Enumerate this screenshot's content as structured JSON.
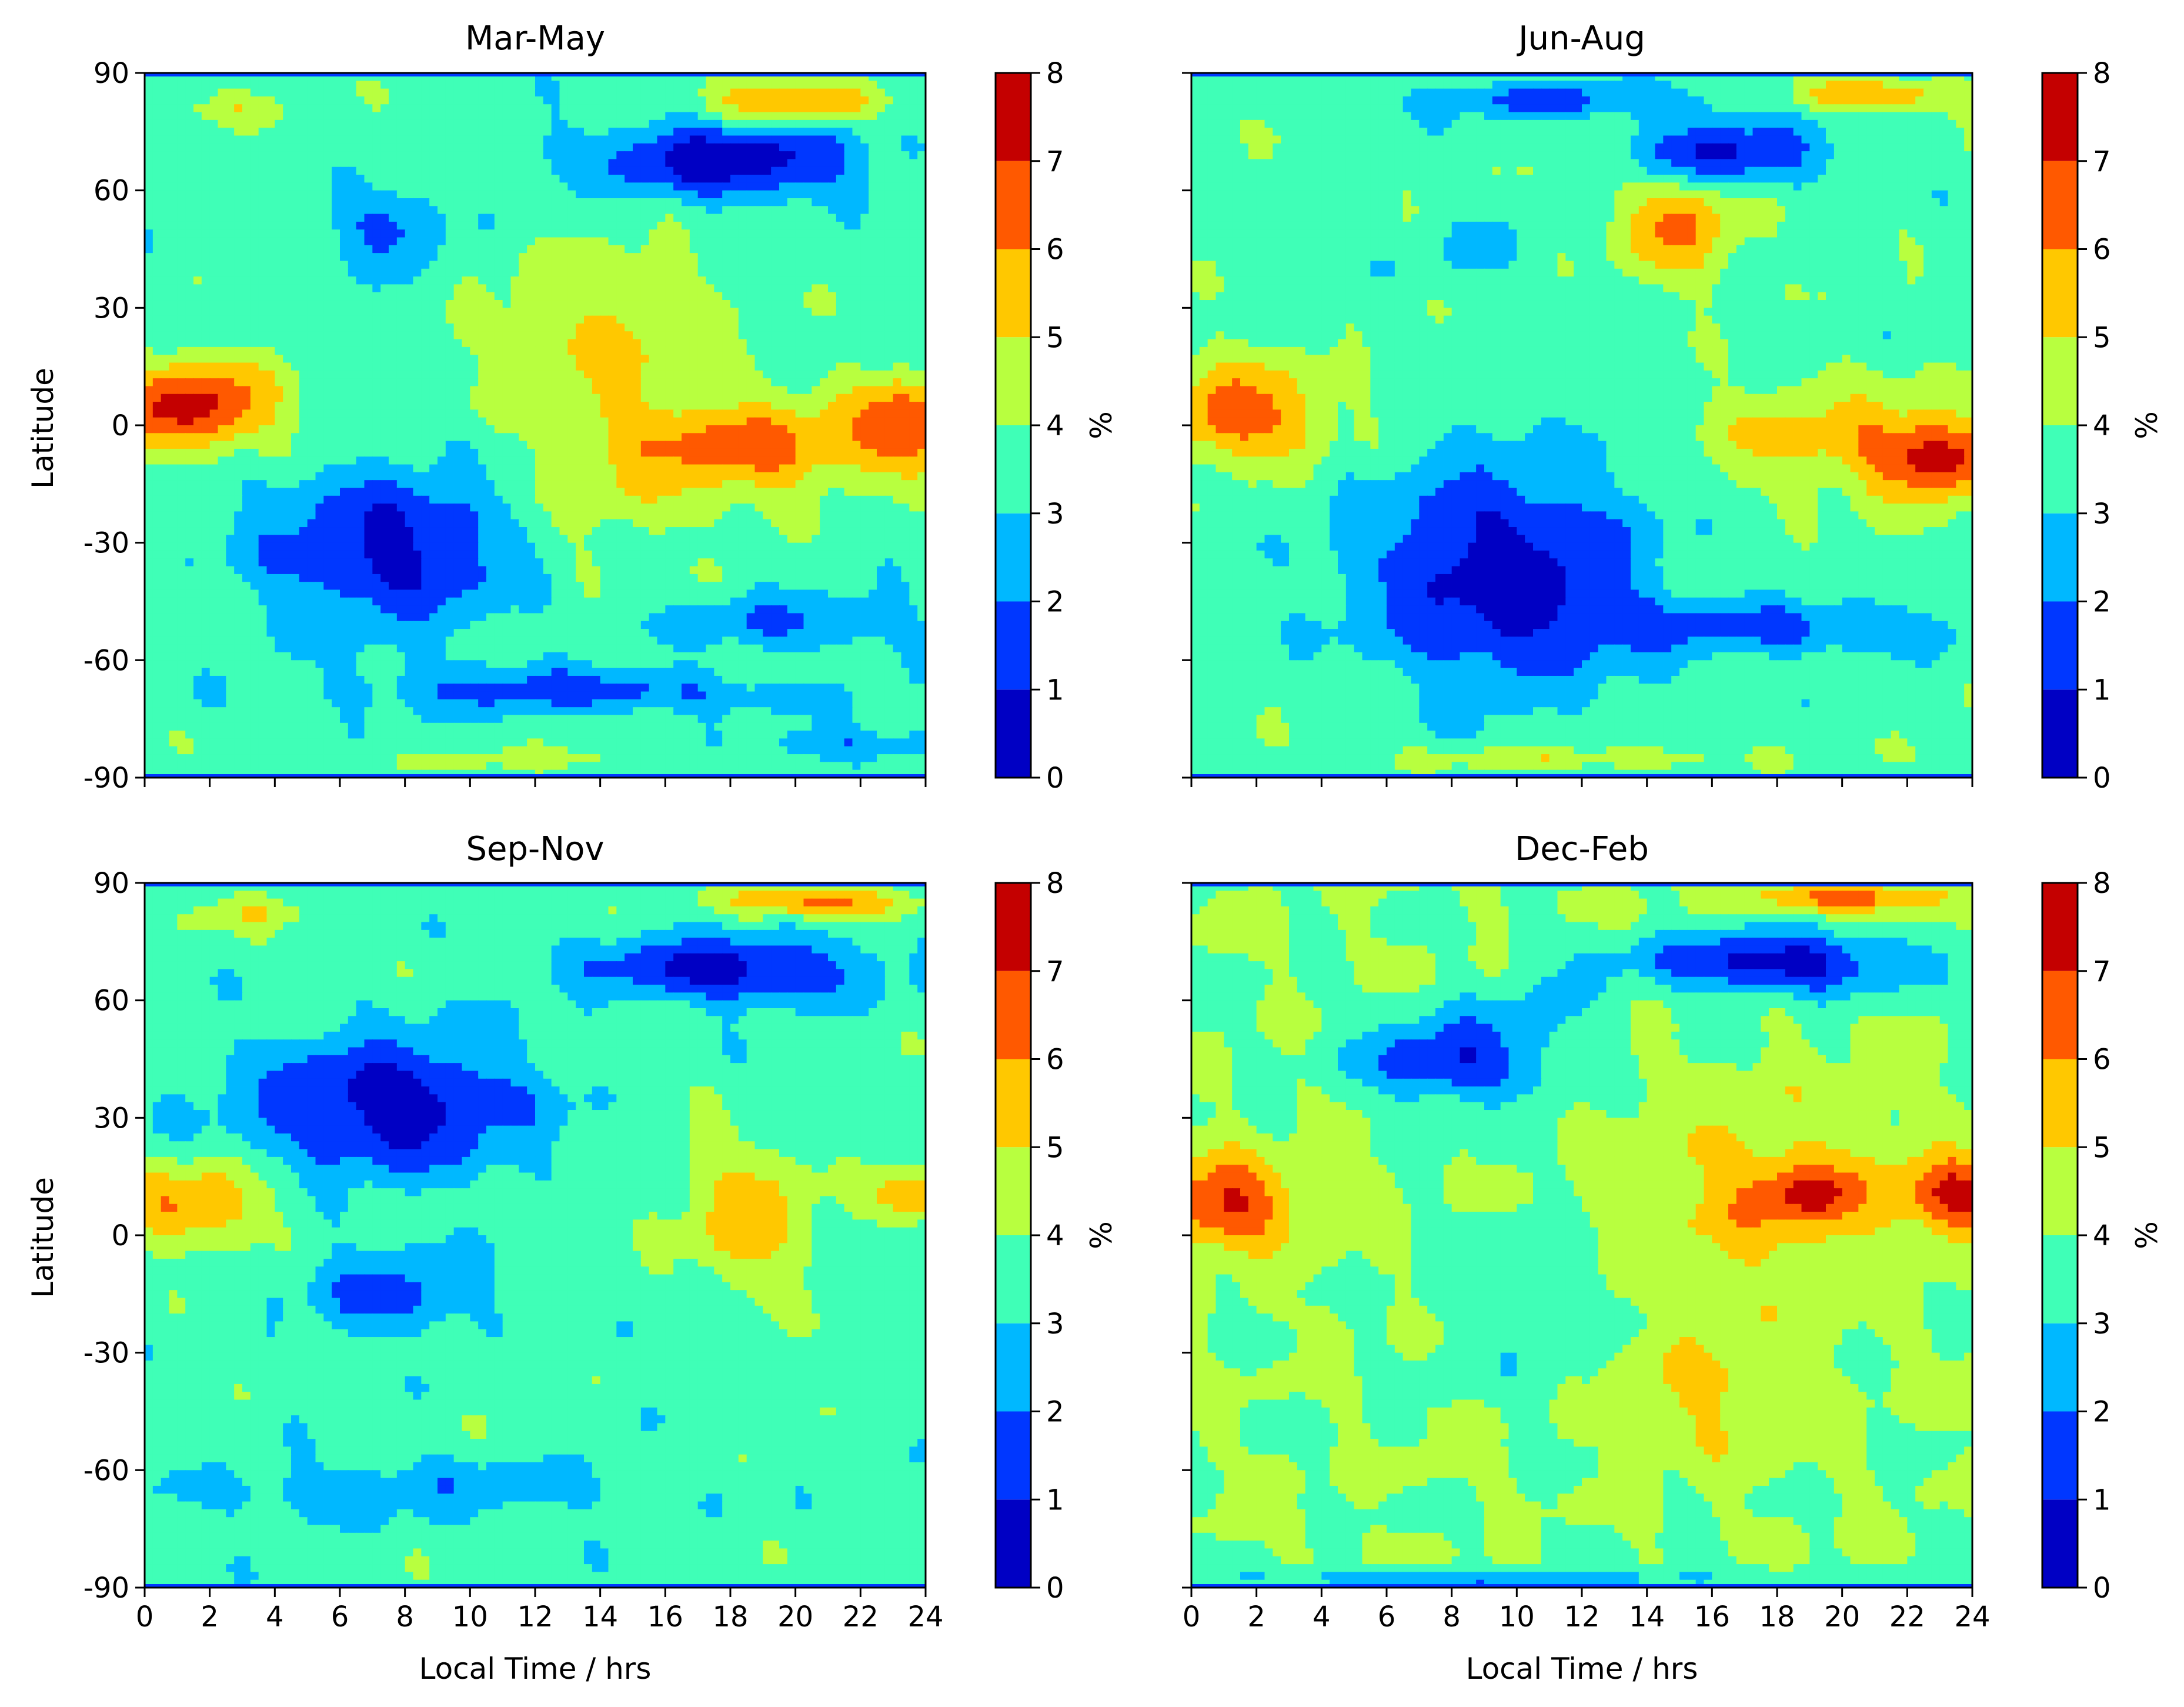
{
  "figure": {
    "colormap": "jet",
    "level_colors": [
      "#0000c4",
      "#0037ff",
      "#00b8ff",
      "#3fffb7",
      "#b8ff3f",
      "#ffc800",
      "#ff5900",
      "#c40000"
    ]
  },
  "chart_data": [
    {
      "type": "heatmap",
      "title": "Mar-May",
      "xlabel": "",
      "ylabel": "Latitude",
      "xlim": [
        0,
        24
      ],
      "ylim": [
        -90,
        90
      ],
      "xticks": [
        0,
        2,
        4,
        6,
        8,
        10,
        12,
        14,
        16,
        18,
        20,
        22,
        24
      ],
      "xtick_labels_shown": false,
      "yticks": [
        90,
        60,
        30,
        0,
        -30,
        -60,
        -90
      ],
      "ytick_labels": [
        "90",
        "60",
        "30",
        "0",
        "-30",
        "-60",
        "-90"
      ],
      "colorbar": {
        "label": "%",
        "levels": [
          0,
          1,
          2,
          3,
          4,
          5,
          6,
          7,
          8
        ],
        "tick_labels": [
          "0",
          "1",
          "2",
          "3",
          "4",
          "5",
          "6",
          "7",
          "8"
        ]
      },
      "base_level": 3.5,
      "features": [
        {
          "lt": 20,
          "lat": 82,
          "slt": 1.8,
          "slat": 4,
          "amp": 3.0
        },
        {
          "lt": 2.5,
          "lat": 81,
          "slt": 1.2,
          "slat": 3,
          "amp": 1.5
        },
        {
          "lt": 18,
          "lat": 68,
          "slt": 3.0,
          "slat": 7,
          "amp": -3.2
        },
        {
          "lt": 7.5,
          "lat": 50,
          "slt": 1.3,
          "slat": 7,
          "amp": -1.8
        },
        {
          "lt": 1.5,
          "lat": 5,
          "slt": 1.8,
          "slat": 8,
          "amp": 4.0
        },
        {
          "lt": 18.5,
          "lat": -6,
          "slt": 2.5,
          "slat": 9,
          "amp": 2.8
        },
        {
          "lt": 23.5,
          "lat": 0,
          "slt": 1.4,
          "slat": 8,
          "amp": 3.2
        },
        {
          "lt": 7.5,
          "lat": -32,
          "slt": 2.8,
          "slat": 14,
          "amp": -2.8
        },
        {
          "lt": 14,
          "lat": 25,
          "slt": 2.5,
          "slat": 16,
          "amp": 1.5
        },
        {
          "lt": 14,
          "lat": -15,
          "slt": 2.0,
          "slat": 20,
          "amp": 1.0
        },
        {
          "lt": 13,
          "lat": -68,
          "slt": 4.5,
          "slat": 4,
          "amp": -2.0
        },
        {
          "lt": 20,
          "lat": -50,
          "slt": 3.0,
          "slat": 5,
          "amp": -1.5
        },
        {
          "lt": 22,
          "lat": -82,
          "slt": 2.0,
          "slat": 3,
          "amp": -1.5
        },
        {
          "lt": 12,
          "lat": -85,
          "slt": 3.0,
          "slat": 2,
          "amp": 1.0
        }
      ]
    },
    {
      "type": "heatmap",
      "title": "Jun-Aug",
      "xlabel": "",
      "ylabel": "",
      "xlim": [
        0,
        24
      ],
      "ylim": [
        -90,
        90
      ],
      "xticks": [
        0,
        2,
        4,
        6,
        8,
        10,
        12,
        14,
        16,
        18,
        20,
        22,
        24
      ],
      "xtick_labels_shown": false,
      "yticks": [
        90,
        60,
        30,
        0,
        -30,
        -60,
        -90
      ],
      "ytick_labels_shown": false,
      "colorbar": {
        "label": "%",
        "levels": [
          0,
          1,
          2,
          3,
          4,
          5,
          6,
          7,
          8
        ],
        "tick_labels": [
          "0",
          "1",
          "2",
          "3",
          "4",
          "5",
          "6",
          "7",
          "8"
        ]
      },
      "base_level": 3.6,
      "features": [
        {
          "lt": 21,
          "lat": 84,
          "slt": 1.8,
          "slat": 3,
          "amp": 2.5
        },
        {
          "lt": 16.5,
          "lat": 70,
          "slt": 2.0,
          "slat": 6,
          "amp": -2.8
        },
        {
          "lt": 11,
          "lat": 83,
          "slt": 3.0,
          "slat": 3,
          "amp": -2.0
        },
        {
          "lt": 15,
          "lat": 50,
          "slt": 1.3,
          "slat": 9,
          "amp": 2.5
        },
        {
          "lt": 1.5,
          "lat": 3,
          "slt": 2.0,
          "slat": 9,
          "amp": 3.0
        },
        {
          "lt": 23,
          "lat": -8,
          "slt": 1.6,
          "slat": 8,
          "amp": 3.5
        },
        {
          "lt": 19,
          "lat": -3,
          "slt": 2.5,
          "slat": 10,
          "amp": 1.6
        },
        {
          "lt": 9.5,
          "lat": -38,
          "slt": 3.0,
          "slat": 20,
          "amp": -3.2
        },
        {
          "lt": 18,
          "lat": -52,
          "slt": 4.5,
          "slat": 5,
          "amp": -1.8
        },
        {
          "lt": 9,
          "lat": 45,
          "slt": 1.5,
          "slat": 6,
          "amp": -0.7
        },
        {
          "lt": 12,
          "lat": -85,
          "slt": 4.0,
          "slat": 2,
          "amp": 1.3
        }
      ]
    },
    {
      "type": "heatmap",
      "title": "Sep-Nov",
      "xlabel": "Local Time / hrs",
      "ylabel": "Latitude",
      "xlim": [
        0,
        24
      ],
      "ylim": [
        -90,
        90
      ],
      "xticks": [
        0,
        2,
        4,
        6,
        8,
        10,
        12,
        14,
        16,
        18,
        20,
        22,
        24
      ],
      "xtick_labels": [
        "0",
        "2",
        "4",
        "6",
        "8",
        "10",
        "12",
        "14",
        "16",
        "18",
        "20",
        "22",
        "24"
      ],
      "yticks": [
        90,
        60,
        30,
        0,
        -30,
        -60,
        -90
      ],
      "ytick_labels": [
        "90",
        "60",
        "30",
        "0",
        "-30",
        "-60",
        "-90"
      ],
      "colorbar": {
        "label": "%",
        "levels": [
          0,
          1,
          2,
          3,
          4,
          5,
          6,
          7,
          8
        ],
        "tick_labels": [
          "0",
          "1",
          "2",
          "3",
          "4",
          "5",
          "6",
          "7",
          "8"
        ]
      },
      "base_level": 3.5,
      "features": [
        {
          "lt": 20.5,
          "lat": 85,
          "slt": 2.0,
          "slat": 3,
          "amp": 3.0
        },
        {
          "lt": 18,
          "lat": 68,
          "slt": 3.0,
          "slat": 6,
          "amp": -3.0
        },
        {
          "lt": 7.5,
          "lat": 33,
          "slt": 3.0,
          "slat": 12,
          "amp": -3.2
        },
        {
          "lt": 1.5,
          "lat": 8,
          "slt": 1.6,
          "slat": 7,
          "amp": 2.8
        },
        {
          "lt": 23.5,
          "lat": 10,
          "slt": 0.8,
          "slat": 5,
          "amp": 2.5
        },
        {
          "lt": 18.5,
          "lat": 5,
          "slt": 1.5,
          "slat": 14,
          "amp": 2.0
        },
        {
          "lt": 7.5,
          "lat": -15,
          "slt": 1.8,
          "slat": 8,
          "amp": -1.8
        },
        {
          "lt": 8,
          "lat": -65,
          "slt": 5.0,
          "slat": 5,
          "amp": -1.2
        },
        {
          "lt": 3,
          "lat": 82,
          "slt": 1.5,
          "slat": 3,
          "amp": 1.3
        }
      ]
    },
    {
      "type": "heatmap",
      "title": "Dec-Feb",
      "xlabel": "Local Time / hrs",
      "ylabel": "",
      "xlim": [
        0,
        24
      ],
      "ylim": [
        -90,
        90
      ],
      "xticks": [
        0,
        2,
        4,
        6,
        8,
        10,
        12,
        14,
        16,
        18,
        20,
        22,
        24
      ],
      "xtick_labels": [
        "0",
        "2",
        "4",
        "6",
        "8",
        "10",
        "12",
        "14",
        "16",
        "18",
        "20",
        "22",
        "24"
      ],
      "yticks": [
        90,
        60,
        30,
        0,
        -30,
        -60,
        -90
      ],
      "ytick_labels_shown": false,
      "colorbar": {
        "label": "%",
        "levels": [
          0,
          1,
          2,
          3,
          4,
          5,
          6,
          7,
          8
        ],
        "tick_labels": [
          "0",
          "1",
          "2",
          "3",
          "4",
          "5",
          "6",
          "7",
          "8"
        ]
      },
      "base_level": 4.0,
      "features": [
        {
          "lt": 20,
          "lat": 86,
          "slt": 2.0,
          "slat": 3,
          "amp": 2.8
        },
        {
          "lt": 18,
          "lat": 70,
          "slt": 3.0,
          "slat": 6,
          "amp": -3.5
        },
        {
          "lt": 8,
          "lat": 45,
          "slt": 2.0,
          "slat": 8,
          "amp": -3.0
        },
        {
          "lt": 1,
          "lat": 8,
          "slt": 1.6,
          "slat": 8,
          "amp": 3.2
        },
        {
          "lt": 23.5,
          "lat": 10,
          "slt": 1.2,
          "slat": 7,
          "amp": 3.2
        },
        {
          "lt": 19,
          "lat": 10,
          "slt": 1.2,
          "slat": 5,
          "amp": 2.3
        },
        {
          "lt": 17.5,
          "lat": 10,
          "slt": 3.0,
          "slat": 18,
          "amp": 1.4
        },
        {
          "lt": 16,
          "lat": -40,
          "slt": 2.0,
          "slat": 12,
          "amp": 1.2
        },
        {
          "lt": 10.5,
          "lat": -20,
          "slt": 2.0,
          "slat": 18,
          "amp": -0.8
        },
        {
          "lt": 11,
          "lat": 60,
          "slt": 1.5,
          "slat": 10,
          "amp": -0.8
        },
        {
          "lt": 10,
          "lat": -88,
          "slt": 6.0,
          "slat": 2,
          "amp": -1.8
        },
        {
          "lt": 8,
          "lat": -58,
          "slt": 1.0,
          "slat": 2.5,
          "amp": 1.0
        }
      ]
    }
  ]
}
